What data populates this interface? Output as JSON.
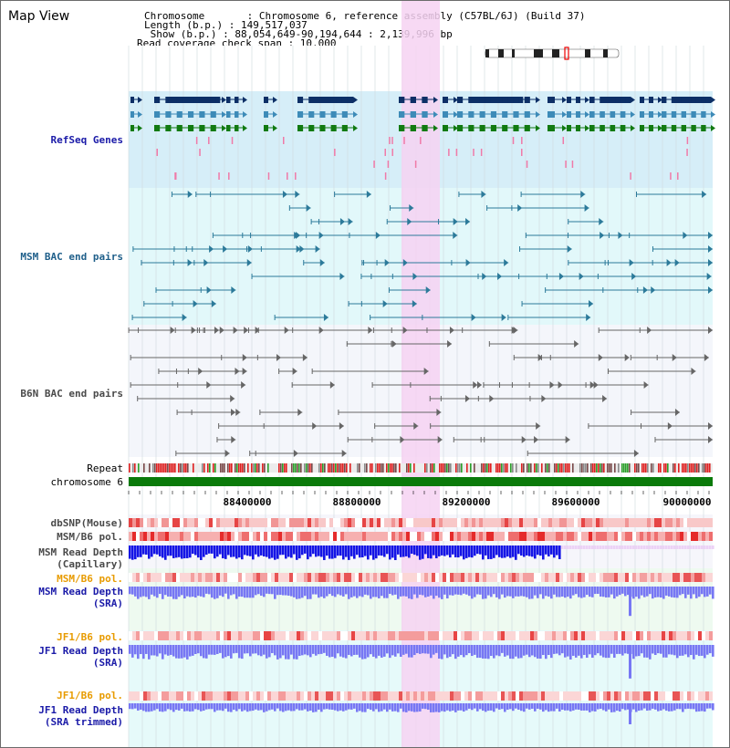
{
  "title": "Map View",
  "header": {
    "chromosome": "Chromosome       : Chromosome 6, reference assembly (C57BL/6J) (Build 37)",
    "length": "Length (b.p.) : 149,517,037",
    "show": " Show (b.p.) : 88,054,649-90,194,644 : 2,139,996 bp",
    "coverage": "Read coverage check span : 10,000"
  },
  "tracks": {
    "refseq": "RefSeq Genes",
    "msm_bac": "MSM BAC end pairs",
    "b6n_bac": "B6N BAC end pairs",
    "repeat": "Repeat",
    "chromosome": "chromosome 6",
    "dbsnp": "dbSNP(Mouse)",
    "msm_b6_pol_1": "MSM/B6 pol.",
    "msm_read_depth_cap_1": "MSM Read Depth",
    "msm_read_depth_cap_2": "(Capillary)",
    "msm_b6_pol_2": "MSM/B6 pol.",
    "msm_read_depth_sra_1": "MSM Read Depth",
    "msm_read_depth_sra_2": "(SRA)",
    "jf1_b6_pol_1": "JF1/B6 pol.",
    "jf1_read_depth_sra_1": "JF1 Read Depth",
    "jf1_read_depth_sra_2": "(SRA)",
    "jf1_b6_pol_2": "JF1/B6 pol.",
    "jf1_read_depth_trim_1": "JF1 Read Depth",
    "jf1_read_depth_trim_2": "(SRA trimmed)"
  },
  "axis": {
    "ticks": [
      "88400000",
      "88800000",
      "89200000",
      "89600000",
      "90000000"
    ]
  },
  "colors": {
    "refseq_bg": "#d6eef8",
    "msm_bac_bg": "#e2f8fa",
    "b6n_bac_bg": "#f4f6fb",
    "highlight": "#f6d2f2",
    "chromosome_bar": "#0a7a0a",
    "depth_blue": "#1414e6",
    "depth_lav": "#7777f4",
    "pol_red": "#e52b2b"
  }
}
